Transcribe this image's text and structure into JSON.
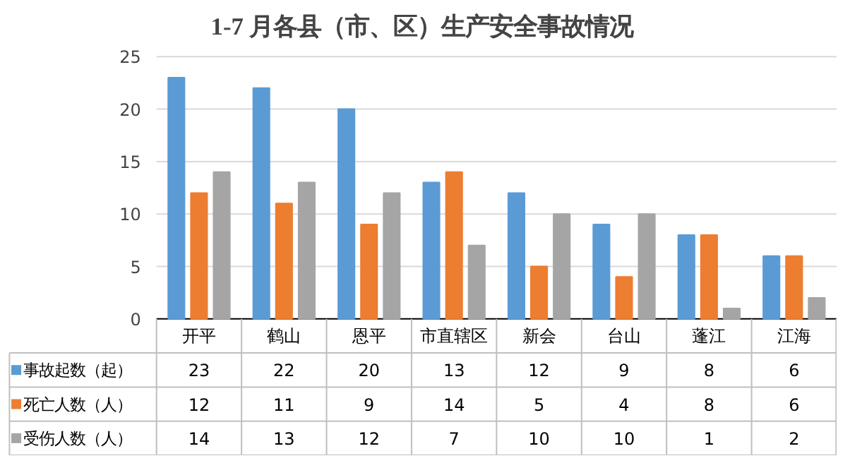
{
  "chart_data": {
    "type": "bar",
    "title": "1-7 月各县（市、区）生产安全事故情况",
    "categories": [
      "开平",
      "鹤山",
      "恩平",
      "市直辖区",
      "新会",
      "台山",
      "蓬江",
      "江海"
    ],
    "series": [
      {
        "name": "事故起数（起）",
        "color": "#5b9bd5",
        "values": [
          23,
          22,
          20,
          13,
          12,
          9,
          8,
          6
        ]
      },
      {
        "name": "死亡人数（人）",
        "color": "#ed7d31",
        "values": [
          12,
          11,
          9,
          14,
          5,
          4,
          8,
          6
        ]
      },
      {
        "name": "受伤人数（人）",
        "color": "#a5a5a5",
        "values": [
          14,
          13,
          12,
          7,
          10,
          10,
          1,
          2
        ]
      }
    ],
    "ylim": [
      0,
      25
    ],
    "yticks": [
      0,
      5,
      10,
      15,
      20,
      25
    ],
    "grid": "y",
    "legend": "bottom",
    "data_labels": true
  }
}
